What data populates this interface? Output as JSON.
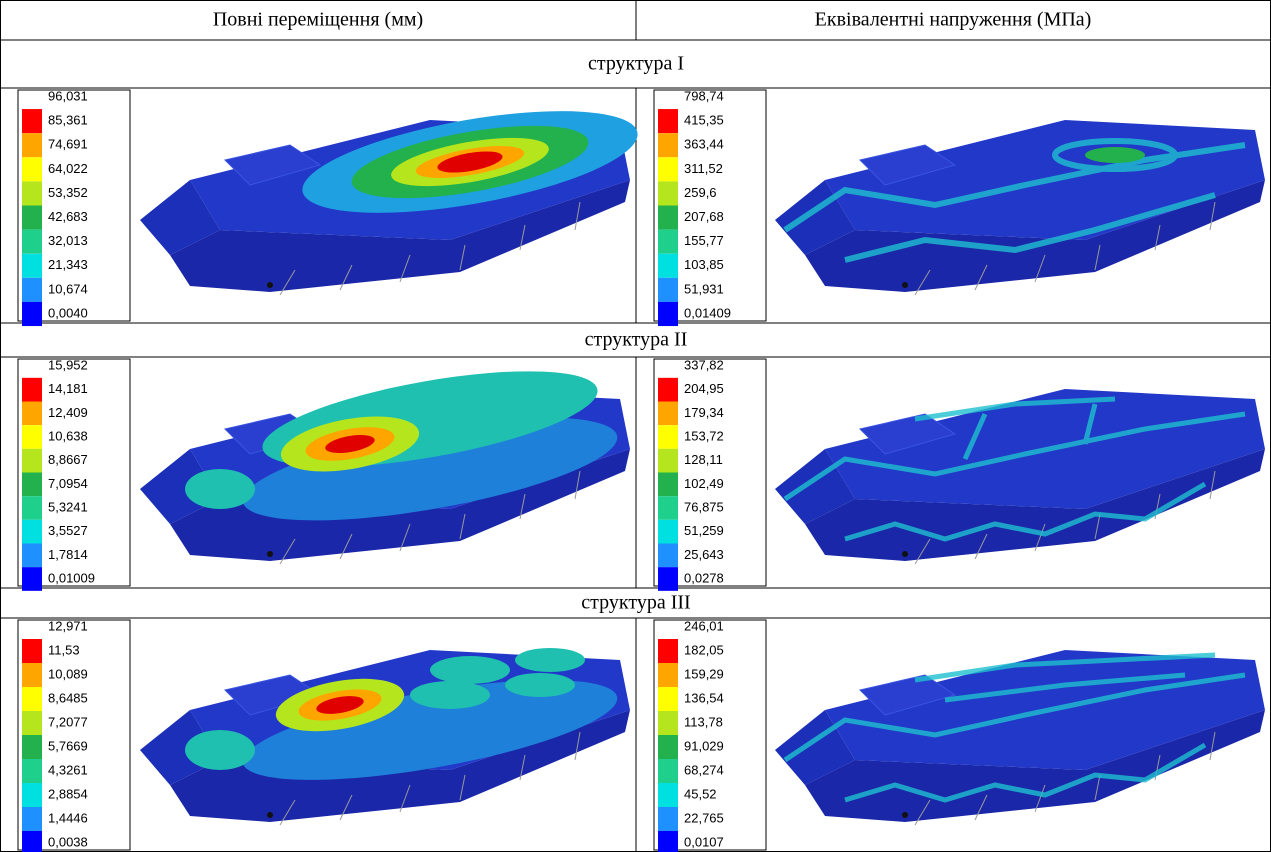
{
  "header": {
    "col1": "Повні переміщення (мм)",
    "col2": "Еквівалентні напруження (МПа)"
  },
  "rows": [
    {
      "title": "структура I",
      "displacement_legend": [
        "96,031",
        "85,361",
        "74,691",
        "64,022",
        "53,352",
        "42,683",
        "32,013",
        "21,343",
        "10,674",
        "0,0040"
      ],
      "stress_legend": [
        "798,74",
        "415,35",
        "363,44",
        "311,52",
        "259,6",
        "207,68",
        "155,77",
        "103,85",
        "51,931",
        "0,01409"
      ]
    },
    {
      "title": "структура II",
      "displacement_legend": [
        "15,952",
        "14,181",
        "12,409",
        "10,638",
        "8,8667",
        "7,0954",
        "5,3241",
        "3,5527",
        "1,7814",
        "0,01009"
      ],
      "stress_legend": [
        "337,82",
        "204,95",
        "179,34",
        "153,72",
        "128,11",
        "102,49",
        "76,875",
        "51,259",
        "25,643",
        "0,0278"
      ]
    },
    {
      "title": "структура III",
      "displacement_legend": [
        "12,971",
        "11,53",
        "10,089",
        "8,6485",
        "7,2077",
        "5,7669",
        "4,3261",
        "2,8854",
        "1,4446",
        "0,0038"
      ],
      "stress_legend": [
        "246,01",
        "182,05",
        "159,29",
        "136,54",
        "113,78",
        "91,029",
        "68,274",
        "45,52",
        "22,765",
        "0,0107"
      ]
    }
  ]
}
